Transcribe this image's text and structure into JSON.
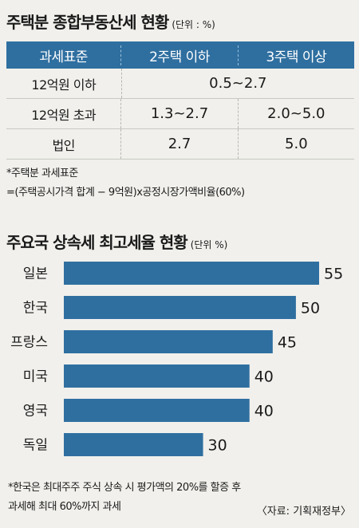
{
  "section1": {
    "title": "주택분 종합부동산세 현황",
    "unit": "(단위 : %)",
    "headers": [
      "과세표준",
      "2주택 이하",
      "3주택 이상"
    ],
    "rows": [
      {
        "label": "12억원 이하",
        "merged": "0.5~2.7"
      },
      {
        "label": "12억원 초과",
        "col2": "1.3~2.7",
        "col3": "2.0~5.0"
      },
      {
        "label": "법인",
        "col2": "2.7",
        "col3": "5.0"
      }
    ],
    "note_title": "*주택분 과세표준",
    "note_formula": "=(주택공시가격 합계 − 9억원)x공정시장가액비율(60%)"
  },
  "section2": {
    "title": "주요국 상속세 최고세율 현황",
    "unit": "(단위 %)"
  },
  "chart_data": {
    "type": "bar",
    "orientation": "horizontal",
    "categories": [
      "일본",
      "한국",
      "프랑스",
      "미국",
      "영국",
      "독일"
    ],
    "values": [
      55,
      50,
      45,
      40,
      40,
      30
    ],
    "title": "주요국 상속세 최고세율 현황",
    "xlim": [
      0,
      55
    ],
    "bar_color": "#2f6fa0",
    "grid": false
  },
  "footnote": {
    "line1": "*한국은 최대주주 주식 상속 시 평가액의 20%를 할증 후",
    "line2": "과세해 최대 60%까지 과세",
    "source": "〈자료: 기획재정부〉"
  }
}
